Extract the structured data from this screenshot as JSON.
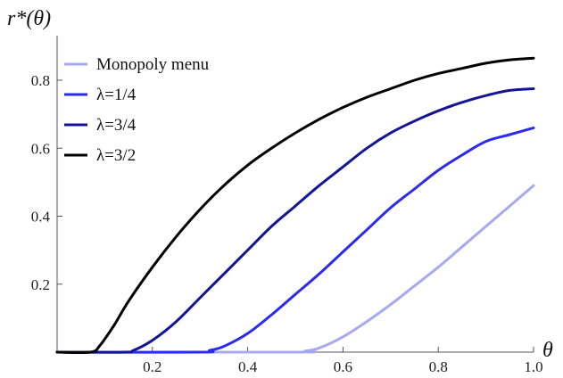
{
  "chart_data": {
    "type": "line",
    "title": "",
    "xlabel": "θ",
    "ylabel": "r*(θ)",
    "xlim": [
      0,
      1.0
    ],
    "ylim": [
      0,
      0.92
    ],
    "xticks": [
      0.2,
      0.4,
      0.6,
      0.8,
      1.0
    ],
    "xtick_labels": [
      "0.2",
      "0.4",
      "0.6",
      "0.8",
      "1.0"
    ],
    "yticks": [
      0.2,
      0.4,
      0.6,
      0.8
    ],
    "ytick_labels": [
      "0.2",
      "0.4",
      "0.6",
      "0.8"
    ],
    "grid": false,
    "legend_position": "top-left",
    "series": [
      {
        "name": "Monopoly menu",
        "color": "#a8a8f0",
        "x": [
          0.0,
          0.5,
          0.52,
          0.55,
          0.6,
          0.65,
          0.7,
          0.75,
          0.8,
          0.85,
          0.9,
          0.95,
          1.0
        ],
        "y": [
          0.0,
          0.0,
          0.003,
          0.012,
          0.045,
          0.09,
          0.14,
          0.195,
          0.25,
          0.31,
          0.37,
          0.43,
          0.49
        ]
      },
      {
        "name": "λ=1/4",
        "color": "#2b2bef",
        "x": [
          0.0,
          0.3,
          0.32,
          0.35,
          0.4,
          0.45,
          0.5,
          0.55,
          0.6,
          0.65,
          0.7,
          0.75,
          0.8,
          0.85,
          0.9,
          0.95,
          1.0
        ],
        "y": [
          0.0,
          0.0,
          0.005,
          0.017,
          0.055,
          0.11,
          0.17,
          0.23,
          0.295,
          0.36,
          0.425,
          0.48,
          0.535,
          0.58,
          0.62,
          0.64,
          0.66
        ]
      },
      {
        "name": "λ=3/4",
        "color": "#141496",
        "x": [
          0.0,
          0.14,
          0.16,
          0.2,
          0.25,
          0.3,
          0.35,
          0.4,
          0.45,
          0.5,
          0.55,
          0.6,
          0.65,
          0.7,
          0.75,
          0.8,
          0.85,
          0.9,
          0.95,
          1.0
        ],
        "y": [
          0.0,
          0.0,
          0.005,
          0.035,
          0.09,
          0.16,
          0.23,
          0.3,
          0.37,
          0.43,
          0.49,
          0.545,
          0.6,
          0.645,
          0.68,
          0.71,
          0.735,
          0.755,
          0.77,
          0.775
        ]
      },
      {
        "name": "λ=3/2",
        "color": "#000000",
        "x": [
          0.0,
          0.07,
          0.09,
          0.12,
          0.15,
          0.2,
          0.25,
          0.3,
          0.35,
          0.4,
          0.45,
          0.5,
          0.55,
          0.6,
          0.65,
          0.7,
          0.75,
          0.8,
          0.85,
          0.9,
          0.95,
          1.0
        ],
        "y": [
          0.0,
          0.0,
          0.02,
          0.08,
          0.15,
          0.25,
          0.34,
          0.42,
          0.49,
          0.55,
          0.6,
          0.645,
          0.685,
          0.72,
          0.75,
          0.775,
          0.8,
          0.82,
          0.835,
          0.85,
          0.86,
          0.865
        ]
      }
    ]
  }
}
